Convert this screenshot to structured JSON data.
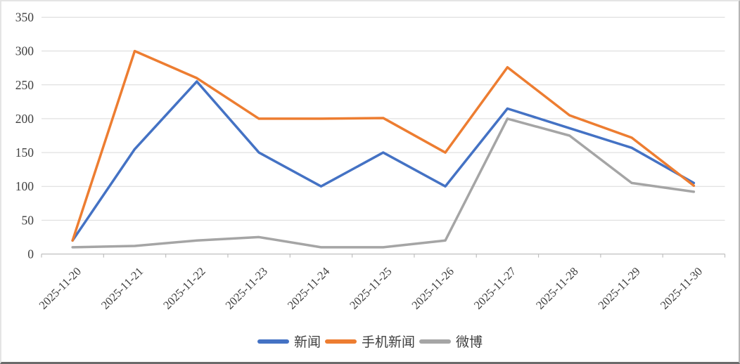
{
  "window": {
    "background": "#ffffff"
  },
  "chart_data": {
    "type": "line",
    "title": "",
    "xlabel": "",
    "ylabel": "",
    "categories": [
      "2025-11-20",
      "2025-11-21",
      "2025-11-22",
      "2025-11-23",
      "2025-11-24",
      "2025-11-25",
      "2025-11-26",
      "2025-11-27",
      "2025-11-28",
      "2025-11-29",
      "2025-11-30"
    ],
    "series": [
      {
        "name": "新闻",
        "color": "#4472C4",
        "values": [
          20,
          155,
          255,
          150,
          100,
          150,
          100,
          215,
          186,
          157,
          105
        ]
      },
      {
        "name": "手机新闻",
        "color": "#ED7D31",
        "values": [
          20,
          300,
          260,
          200,
          200,
          201,
          150,
          276,
          205,
          172,
          101
        ]
      },
      {
        "name": "微博",
        "color": "#A5A5A5",
        "values": [
          10,
          12,
          20,
          25,
          10,
          10,
          20,
          200,
          175,
          105,
          92
        ]
      }
    ],
    "ylim": [
      0,
      350
    ],
    "yticks": [
      0,
      50,
      100,
      150,
      200,
      250,
      300,
      350
    ],
    "grid": "horizontal",
    "gridline_color": "#D9D9D9",
    "axis_line_color": "#BFBFBF",
    "tick_label_color": "#404040",
    "legend_position": "bottom",
    "x_label_rotation_deg": -45,
    "line_width": 3.5
  }
}
